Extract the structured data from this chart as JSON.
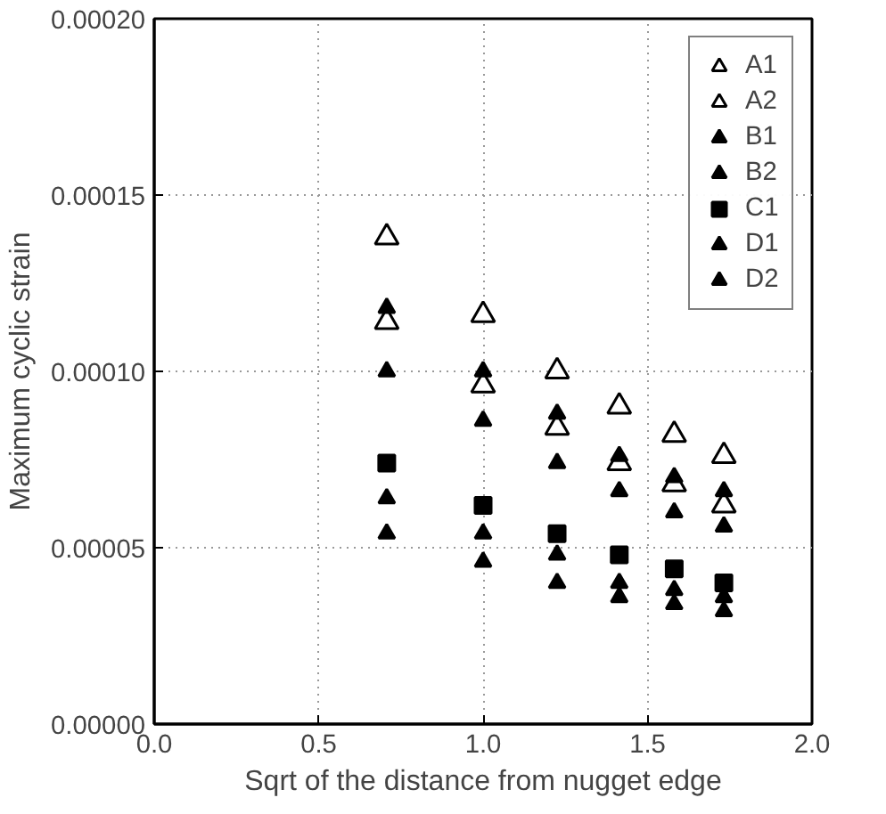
{
  "chart_data": {
    "type": "scatter",
    "xlabel": "Sqrt of the distance from nugget edge",
    "ylabel": "Maximum cyclic strain",
    "x": [
      0.707,
      1.0,
      1.225,
      1.414,
      1.581,
      1.732
    ],
    "series": [
      {
        "name": "A1",
        "color": "#000000",
        "marker": "triangle-open",
        "values": [
          0.000138,
          0.000116,
          0.0001,
          9e-05,
          8.2e-05,
          7.6e-05
        ]
      },
      {
        "name": "A2",
        "color": "#000000",
        "marker": "triangle-open",
        "values": [
          0.000114,
          9.6e-05,
          8.4e-05,
          7.4e-05,
          6.8e-05,
          6.2e-05
        ]
      },
      {
        "name": "B1",
        "color": "#000000",
        "marker": "triangle",
        "values": [
          0.000118,
          0.0001,
          8.8e-05,
          7.6e-05,
          7e-05,
          6.6e-05
        ]
      },
      {
        "name": "B2",
        "color": "#000000",
        "marker": "triangle",
        "values": [
          0.0001,
          8.6e-05,
          7.4e-05,
          6.6e-05,
          6e-05,
          5.6e-05
        ]
      },
      {
        "name": "C1",
        "color": "#000000",
        "marker": "square",
        "values": [
          7.4e-05,
          6.2e-05,
          5.4e-05,
          4.8e-05,
          4.4e-05,
          4e-05
        ]
      },
      {
        "name": "D1",
        "color": "#000000",
        "marker": "triangle",
        "values": [
          6.4e-05,
          5.4e-05,
          4.8e-05,
          4e-05,
          3.8e-05,
          3.6e-05
        ]
      },
      {
        "name": "D2",
        "color": "#000000",
        "marker": "triangle",
        "values": [
          5.4e-05,
          4.6e-05,
          4e-05,
          3.6e-05,
          3.4e-05,
          3.2e-05
        ]
      }
    ],
    "xlim": [
      0.0,
      2.0
    ],
    "xticks": [
      {
        "value": 0,
        "label": "0.0"
      },
      0.5,
      {
        "value": 1,
        "label": "1.0"
      },
      1.5,
      {
        "value": 2,
        "label": "2.0"
      }
    ],
    "ylim": [
      0,
      0.0002
    ],
    "yticks": [
      {
        "value": 0,
        "label": "0.00000"
      },
      {
        "value": 5e-05,
        "label": "0.00005"
      },
      {
        "value": 0.0001,
        "label": "0.00010"
      },
      {
        "value": 0.00015,
        "label": "0.00015"
      },
      {
        "value": 0.0002,
        "label": "0.00020"
      }
    ],
    "grid": true,
    "legend": "top right"
  }
}
